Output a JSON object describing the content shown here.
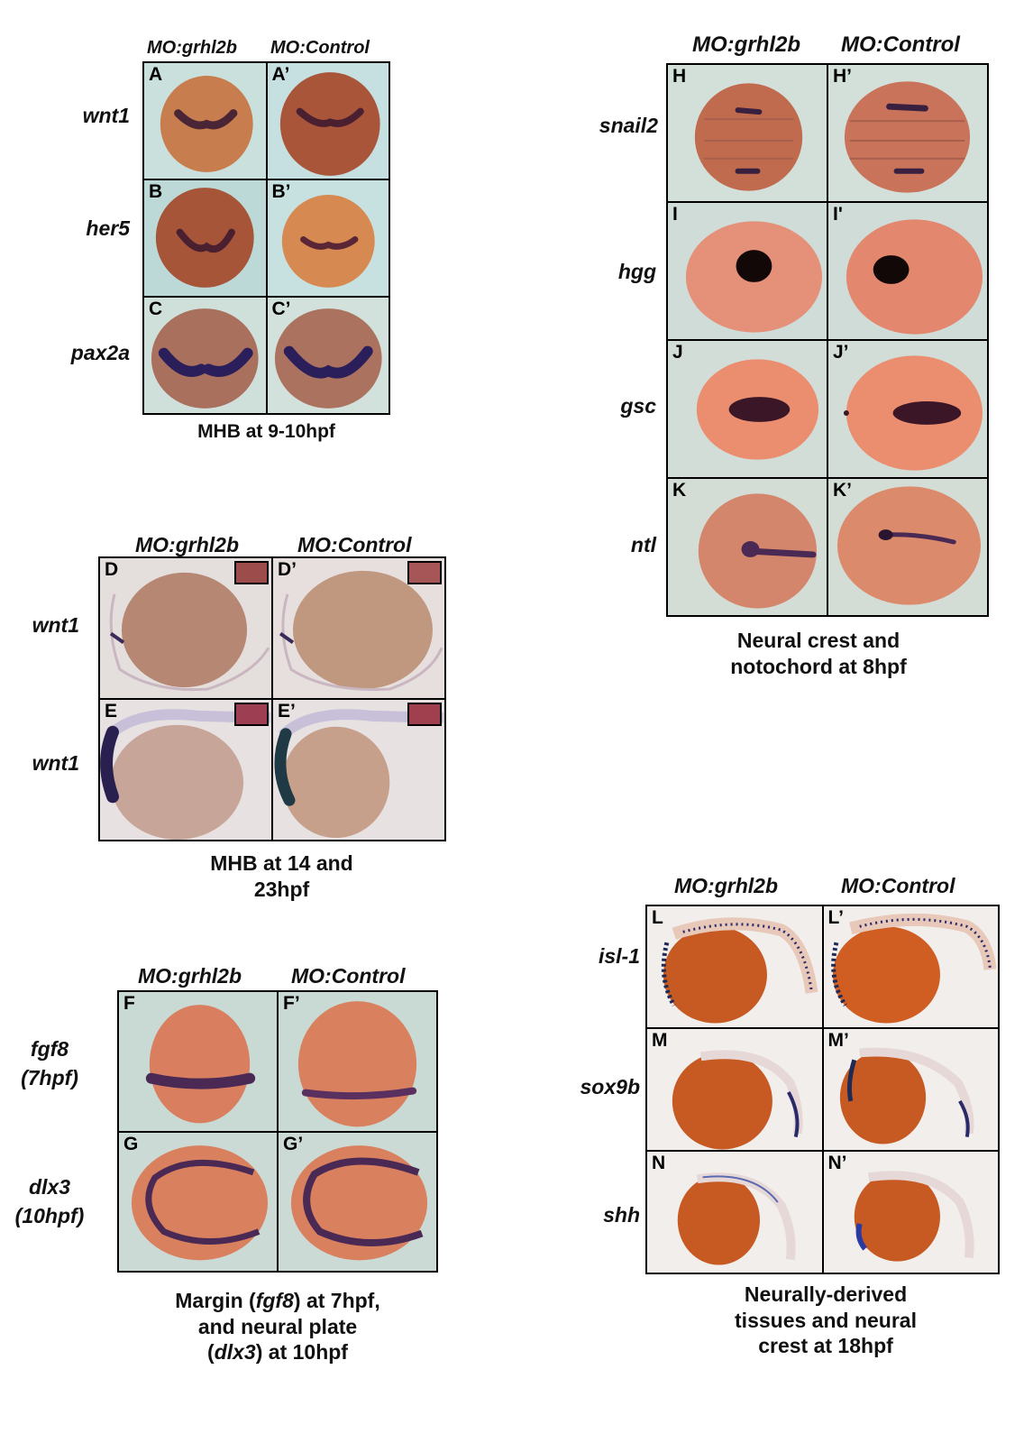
{
  "panelA": {
    "headers": [
      "MO:grhl2b",
      "MO:Control"
    ],
    "genes": [
      "wnt1",
      "her5",
      "pax2a"
    ],
    "labels": [
      "A",
      "A’",
      "B",
      "B’",
      "C",
      "C’"
    ],
    "caption": "MHB at 9-10hpf"
  },
  "panelD": {
    "headers": [
      "MO:grhl2b",
      "MO:Control"
    ],
    "genes": [
      "wnt1",
      "wnt1"
    ],
    "labels": [
      "D",
      "D’",
      "E",
      "E’"
    ],
    "caption": "MHB at 14 and 23hpf"
  },
  "panelF": {
    "headers": [
      "MO:grhl2b",
      "MO:Control"
    ],
    "genes": [
      "fgf8",
      "(7hpf)",
      "dlx3",
      "(10hpf)"
    ],
    "labels": [
      "F",
      "F’",
      "G",
      "G’"
    ],
    "caption": [
      "Margin (",
      "fgf8",
      ") at 7hpf, and neural plate (",
      "dlx3",
      ") at 10hpf"
    ]
  },
  "panelH": {
    "headers": [
      "MO:grhl2b",
      "MO:Control"
    ],
    "genes": [
      "snail2",
      "hgg",
      "gsc",
      "ntl"
    ],
    "labels": [
      "H",
      "H’",
      "I",
      "I'",
      "J",
      "J’",
      "K",
      "K’"
    ],
    "caption": "Neural crest and notochord at 8hpf"
  },
  "panelL": {
    "headers": [
      "MO:grhl2b",
      "MO:Control"
    ],
    "genes": [
      "isl-1",
      "sox9b",
      "shh"
    ],
    "labels": [
      "L",
      "L’",
      "M",
      "M’",
      "N",
      "N’"
    ],
    "caption": "Neurally-derived tissues and neural crest at 18hpf"
  },
  "colors": {
    "embryo_orange": "#d9805e",
    "embryo_brown": "#a8654b",
    "stain_purple": "#3a2150",
    "background_aqua": "#d5e4dc"
  }
}
